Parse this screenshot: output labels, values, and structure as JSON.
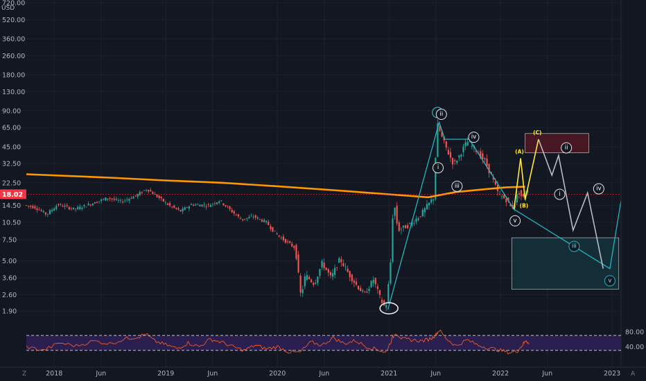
{
  "chart_data": {
    "type": "candlestick",
    "currency": "USD",
    "price_axis": {
      "scale": "log",
      "ticks": [
        "720.00",
        "520.00",
        "360.00",
        "260.00",
        "180.00",
        "130.00",
        "90.00",
        "65.00",
        "45.00",
        "32.50",
        "22.50",
        "14.50",
        "10.50",
        "7.50",
        "5.00",
        "3.60",
        "2.60",
        "1.90"
      ],
      "tick_values": [
        720,
        520,
        360,
        260,
        180,
        130,
        90,
        65,
        45,
        32.5,
        22.5,
        14.5,
        10.5,
        7.5,
        5,
        3.6,
        2.6,
        1.9
      ],
      "last_price": "18.02",
      "last_price_value": 18.02
    },
    "time_axis": {
      "labels": [
        "2018",
        "Jun",
        "2019",
        "Jun",
        "2020",
        "Jun",
        "2021",
        "Jun",
        "2022",
        "Jun",
        "2023"
      ],
      "positions": [
        2018.0,
        2018.42,
        2019.0,
        2019.42,
        2020.0,
        2020.42,
        2021.0,
        2021.42,
        2022.0,
        2022.42,
        2023.0
      ],
      "range": [
        2017.75,
        2023.08
      ]
    },
    "rsi_axis": {
      "ticks": [
        "80.00",
        "40.00"
      ],
      "tick_values": [
        80,
        40
      ],
      "bands": [
        70,
        30
      ]
    },
    "price_path": [
      [
        2017.75,
        14.6
      ],
      [
        2017.85,
        14.0
      ],
      [
        2017.95,
        12.2
      ],
      [
        2018.05,
        14.8
      ],
      [
        2018.2,
        13.5
      ],
      [
        2018.35,
        15.0
      ],
      [
        2018.5,
        16.8
      ],
      [
        2018.62,
        15.6
      ],
      [
        2018.75,
        17.5
      ],
      [
        2018.85,
        20.0
      ],
      [
        2018.95,
        17.0
      ],
      [
        2019.05,
        14.5
      ],
      [
        2019.15,
        13.0
      ],
      [
        2019.25,
        14.8
      ],
      [
        2019.4,
        14.5
      ],
      [
        2019.5,
        16.0
      ],
      [
        2019.6,
        13.2
      ],
      [
        2019.7,
        11.0
      ],
      [
        2019.8,
        11.8
      ],
      [
        2019.92,
        10.5
      ],
      [
        2020.0,
        8.5
      ],
      [
        2020.1,
        7.2
      ],
      [
        2020.18,
        6.4
      ],
      [
        2020.23,
        2.5
      ],
      [
        2020.27,
        3.8
      ],
      [
        2020.35,
        3.2
      ],
      [
        2020.42,
        4.8
      ],
      [
        2020.5,
        3.6
      ],
      [
        2020.58,
        5.2
      ],
      [
        2020.65,
        4.0
      ],
      [
        2020.72,
        3.2
      ],
      [
        2020.8,
        2.6
      ],
      [
        2020.88,
        3.5
      ],
      [
        2020.95,
        2.3
      ],
      [
        2020.99,
        2.0
      ],
      [
        2021.03,
        4.2
      ],
      [
        2021.06,
        16.5
      ],
      [
        2021.1,
        9.0
      ],
      [
        2021.2,
        10.0
      ],
      [
        2021.3,
        12.0
      ],
      [
        2021.42,
        17.0
      ],
      [
        2021.45,
        70.0
      ],
      [
        2021.5,
        52.0
      ],
      [
        2021.55,
        40.0
      ],
      [
        2021.6,
        32.0
      ],
      [
        2021.65,
        38.0
      ],
      [
        2021.72,
        50.0
      ],
      [
        2021.8,
        42.0
      ],
      [
        2021.88,
        34.0
      ],
      [
        2021.95,
        24.0
      ],
      [
        2022.0,
        18.0
      ],
      [
        2022.08,
        16.0
      ],
      [
        2022.12,
        13.5
      ],
      [
        2022.18,
        19.0
      ],
      [
        2022.22,
        16.5
      ],
      [
        2022.26,
        20.0
      ]
    ],
    "ma_path": [
      [
        2017.75,
        26.5
      ],
      [
        2018.5,
        24.8
      ],
      [
        2019.0,
        23.5
      ],
      [
        2019.5,
        22.5
      ],
      [
        2020.0,
        21.0
      ],
      [
        2020.5,
        19.5
      ],
      [
        2021.0,
        18.0
      ],
      [
        2021.35,
        17.0
      ],
      [
        2021.6,
        18.8
      ],
      [
        2021.85,
        19.8
      ],
      [
        2022.05,
        20.6
      ],
      [
        2022.22,
        20.8
      ]
    ],
    "rsi_path": [
      [
        2017.75,
        40
      ],
      [
        2017.9,
        30
      ],
      [
        2018.05,
        50
      ],
      [
        2018.2,
        42
      ],
      [
        2018.35,
        55
      ],
      [
        2018.5,
        48
      ],
      [
        2018.65,
        62
      ],
      [
        2018.75,
        66
      ],
      [
        2018.82,
        74
      ],
      [
        2018.9,
        55
      ],
      [
        2019.0,
        45
      ],
      [
        2019.1,
        35
      ],
      [
        2019.2,
        50
      ],
      [
        2019.3,
        40
      ],
      [
        2019.4,
        60
      ],
      [
        2019.5,
        52
      ],
      [
        2019.6,
        40
      ],
      [
        2019.7,
        30
      ],
      [
        2019.8,
        44
      ],
      [
        2019.9,
        34
      ],
      [
        2020.0,
        40
      ],
      [
        2020.1,
        26
      ],
      [
        2020.2,
        24
      ],
      [
        2020.3,
        52
      ],
      [
        2020.4,
        44
      ],
      [
        2020.5,
        64
      ],
      [
        2020.6,
        48
      ],
      [
        2020.7,
        56
      ],
      [
        2020.8,
        40
      ],
      [
        2020.9,
        32
      ],
      [
        2020.97,
        24
      ],
      [
        2021.02,
        56
      ],
      [
        2021.06,
        78
      ],
      [
        2021.12,
        60
      ],
      [
        2021.2,
        58
      ],
      [
        2021.3,
        55
      ],
      [
        2021.38,
        62
      ],
      [
        2021.42,
        72
      ],
      [
        2021.45,
        84
      ],
      [
        2021.52,
        60
      ],
      [
        2021.6,
        42
      ],
      [
        2021.7,
        58
      ],
      [
        2021.8,
        44
      ],
      [
        2021.9,
        36
      ],
      [
        2022.0,
        30
      ],
      [
        2022.08,
        24
      ],
      [
        2022.15,
        28
      ],
      [
        2022.2,
        46
      ],
      [
        2022.23,
        58
      ],
      [
        2022.26,
        44
      ]
    ],
    "wave_path": [
      [
        2020.99,
        1.95
      ],
      [
        2021.45,
        72
      ],
      [
        2021.5,
        52
      ],
      [
        2021.72,
        52
      ],
      [
        2022.12,
        13.5
      ],
      [
        2022.98,
        4.3
      ],
      [
        2023.08,
        16
      ]
    ],
    "abc_path": [
      [
        2022.12,
        13.5
      ],
      [
        2022.18,
        36
      ],
      [
        2022.22,
        16.2
      ],
      [
        2022.34,
        52
      ]
    ],
    "projection_path": [
      [
        2022.34,
        52
      ],
      [
        2022.46,
        26
      ],
      [
        2022.52,
        38
      ],
      [
        2022.65,
        9.0
      ],
      [
        2022.78,
        18.5
      ],
      [
        2022.92,
        4.3
      ]
    ],
    "wave_labels": [
      {
        "text": "ii",
        "x": 2021.47,
        "y": 84
      },
      {
        "text": "i",
        "x": 2021.44,
        "y": 30
      },
      {
        "text": "iii",
        "x": 2021.61,
        "y": 21
      },
      {
        "text": "iv",
        "x": 2021.76,
        "y": 54
      },
      {
        "text": "v",
        "x": 2022.13,
        "y": 10.8
      },
      {
        "text": "ii",
        "x": 2022.59,
        "y": 44
      },
      {
        "text": "i",
        "x": 2022.53,
        "y": 18
      },
      {
        "text": "iii",
        "x": 2022.66,
        "y": 6.6
      },
      {
        "text": "iv",
        "x": 2022.88,
        "y": 20
      },
      {
        "text": "v",
        "x": 2022.98,
        "y": 3.4
      }
    ],
    "abc_labels": [
      {
        "text": "(A)",
        "x": 2022.17,
        "y": 41
      },
      {
        "text": "(B)",
        "x": 2022.21,
        "y": 14.4
      },
      {
        "text": "(C)",
        "x": 2022.33,
        "y": 59
      }
    ],
    "resistance_box": {
      "x0": 2022.22,
      "x1": 2022.79,
      "y0": 40,
      "y1": 58
    },
    "support_box": {
      "x0": 2022.1,
      "x1": 2023.06,
      "y0": 2.9,
      "y1": 7.8
    },
    "colors": {
      "background": "#131722",
      "up": "#26a69a",
      "down": "#ef5350",
      "ma": "#ff9800",
      "wave": "#2ab3c0",
      "abc": "#ffeb3b",
      "projection": "#b8bcc6",
      "rsi": "#f05a28",
      "rsi_band": "#2a1f4e",
      "grid": "#1e222d",
      "last_price": "#f23645"
    }
  },
  "toolbar": {
    "goto_label": "Z",
    "auto_label": "A"
  }
}
